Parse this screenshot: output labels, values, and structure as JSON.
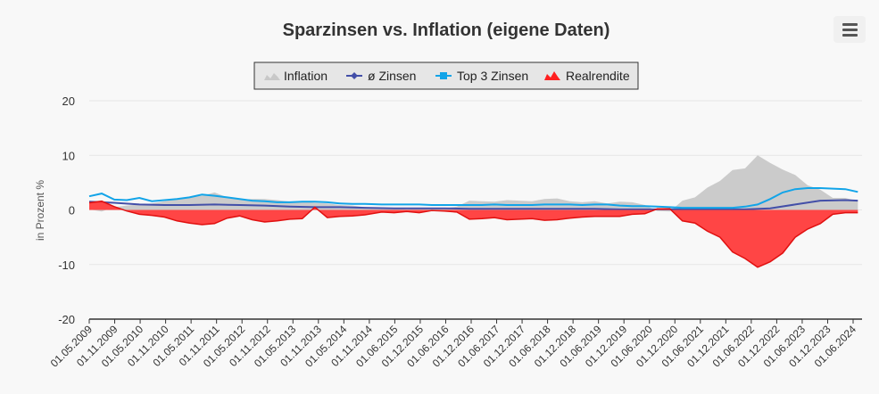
{
  "chart_data": {
    "type": "area",
    "title": "Sparzinsen vs. Inflation (eigene Daten)",
    "ylabel": "in Prozent %",
    "ylim": [
      -20,
      20
    ],
    "yticks": [
      20,
      10,
      0,
      -10,
      -20
    ],
    "grid": true,
    "legend_position": "top-center",
    "x_tick_labels": [
      "01.05.2009",
      "01.11.2009",
      "01.05.2010",
      "01.11.2010",
      "01.05.2011",
      "01.11.2011",
      "01.05.2012",
      "01.11.2012",
      "01.05.2013",
      "01.11.2013",
      "01.05.2014",
      "01.11.2014",
      "01.06.2015",
      "01.12.2015",
      "01.06.2016",
      "01.12.2016",
      "01.06.2017",
      "01.12.2017",
      "01.06.2018",
      "01.12.2018",
      "01.06.2019",
      "01.12.2019",
      "01.06.2020",
      "01.12.2020",
      "01.06.2021",
      "01.12.2021",
      "01.06.2022",
      "01.12.2022",
      "01.06.2023",
      "01.12.2023",
      "01.06.2024"
    ],
    "series": [
      {
        "name": "Inflation",
        "kind": "area",
        "color": "#c8c8c8",
        "x": [
          "2009-05",
          "2009-08",
          "2009-11",
          "2010-02",
          "2010-05",
          "2010-08",
          "2010-11",
          "2011-02",
          "2011-05",
          "2011-08",
          "2011-11",
          "2012-02",
          "2012-05",
          "2012-08",
          "2012-11",
          "2013-02",
          "2013-05",
          "2013-08",
          "2013-11",
          "2014-02",
          "2014-05",
          "2014-08",
          "2014-11",
          "2015-03",
          "2015-06",
          "2015-09",
          "2015-12",
          "2016-03",
          "2016-06",
          "2016-09",
          "2016-12",
          "2017-03",
          "2017-06",
          "2017-09",
          "2017-12",
          "2018-03",
          "2018-06",
          "2018-09",
          "2018-12",
          "2019-03",
          "2019-06",
          "2019-09",
          "2019-12",
          "2020-03",
          "2020-06",
          "2020-09",
          "2020-12",
          "2021-03",
          "2021-06",
          "2021-09",
          "2021-12",
          "2022-03",
          "2022-06",
          "2022-09",
          "2022-12",
          "2023-03",
          "2023-06",
          "2023-09",
          "2023-12",
          "2024-03",
          "2024-06",
          "2024-09"
        ],
        "values": [
          0.1,
          -0.3,
          0.5,
          0.8,
          1.0,
          1.2,
          1.6,
          2.0,
          2.4,
          2.6,
          3.2,
          2.3,
          1.9,
          2.0,
          2.0,
          1.8,
          1.5,
          1.6,
          1.3,
          1.2,
          0.9,
          0.8,
          0.5,
          0.3,
          0.4,
          0.1,
          0.3,
          0.3,
          0.3,
          0.6,
          1.7,
          1.6,
          1.5,
          1.8,
          1.7,
          1.6,
          2.0,
          2.1,
          1.6,
          1.4,
          1.6,
          1.2,
          1.5,
          1.4,
          0.9,
          -0.2,
          -0.3,
          1.7,
          2.3,
          4.1,
          5.3,
          7.3,
          7.6,
          10.0,
          8.6,
          7.4,
          6.4,
          4.5,
          3.7,
          2.2,
          2.2,
          1.6
        ]
      },
      {
        "name": "ø Zinsen",
        "kind": "line",
        "color": "#434fa8",
        "x": [
          "2009-05",
          "2009-11",
          "2010-05",
          "2010-11",
          "2011-05",
          "2011-11",
          "2012-05",
          "2012-11",
          "2013-05",
          "2013-11",
          "2014-05",
          "2014-11",
          "2015-06",
          "2015-12",
          "2016-06",
          "2016-12",
          "2017-06",
          "2017-12",
          "2018-06",
          "2018-12",
          "2019-06",
          "2019-12",
          "2020-06",
          "2020-12",
          "2021-06",
          "2021-12",
          "2022-06",
          "2022-12",
          "2023-06",
          "2023-12",
          "2024-06",
          "2024-09"
        ],
        "values": [
          1.5,
          1.3,
          1.0,
          0.9,
          0.9,
          1.0,
          0.9,
          0.8,
          0.6,
          0.5,
          0.5,
          0.4,
          0.3,
          0.3,
          0.3,
          0.2,
          0.2,
          0.2,
          0.2,
          0.2,
          0.2,
          0.1,
          0.1,
          0.1,
          0.1,
          0.1,
          0.1,
          0.3,
          1.0,
          1.7,
          1.8,
          1.7
        ]
      },
      {
        "name": "Top 3 Zinsen",
        "kind": "line",
        "color": "#12a4e8",
        "x": [
          "2009-05",
          "2009-08",
          "2009-11",
          "2010-02",
          "2010-05",
          "2010-08",
          "2010-11",
          "2011-02",
          "2011-05",
          "2011-08",
          "2011-11",
          "2012-02",
          "2012-05",
          "2012-08",
          "2012-11",
          "2013-02",
          "2013-05",
          "2013-08",
          "2013-11",
          "2014-02",
          "2014-05",
          "2014-08",
          "2014-11",
          "2015-03",
          "2015-06",
          "2015-09",
          "2015-12",
          "2016-03",
          "2016-06",
          "2016-09",
          "2016-12",
          "2017-03",
          "2017-06",
          "2017-09",
          "2017-12",
          "2018-03",
          "2018-06",
          "2018-09",
          "2018-12",
          "2019-03",
          "2019-06",
          "2019-09",
          "2019-12",
          "2020-03",
          "2020-06",
          "2020-09",
          "2020-12",
          "2021-03",
          "2021-06",
          "2021-09",
          "2021-12",
          "2022-03",
          "2022-06",
          "2022-09",
          "2022-12",
          "2023-03",
          "2023-06",
          "2023-09",
          "2023-12",
          "2024-03",
          "2024-06",
          "2024-09"
        ],
        "values": [
          2.5,
          3.0,
          1.9,
          1.8,
          2.2,
          1.6,
          1.8,
          2.0,
          2.3,
          2.8,
          2.6,
          2.3,
          2.0,
          1.7,
          1.6,
          1.4,
          1.4,
          1.5,
          1.5,
          1.4,
          1.2,
          1.1,
          1.1,
          1.0,
          1.0,
          1.0,
          1.0,
          0.9,
          0.9,
          0.9,
          0.9,
          0.9,
          1.0,
          0.9,
          0.9,
          0.9,
          1.0,
          1.0,
          1.0,
          0.9,
          1.0,
          1.0,
          0.8,
          0.7,
          0.7,
          0.6,
          0.5,
          0.4,
          0.4,
          0.4,
          0.4,
          0.4,
          0.6,
          1.0,
          2.0,
          3.2,
          3.8,
          4.0,
          4.0,
          3.9,
          3.8,
          3.3
        ]
      },
      {
        "name": "Realrendite",
        "kind": "area",
        "color": "#ff3b3b",
        "x": [
          "2009-05",
          "2009-08",
          "2009-11",
          "2010-02",
          "2010-05",
          "2010-08",
          "2010-11",
          "2011-02",
          "2011-05",
          "2011-08",
          "2011-11",
          "2012-02",
          "2012-05",
          "2012-08",
          "2012-11",
          "2013-02",
          "2013-05",
          "2013-08",
          "2013-11",
          "2014-02",
          "2014-05",
          "2014-08",
          "2014-11",
          "2015-03",
          "2015-06",
          "2015-09",
          "2015-12",
          "2016-03",
          "2016-06",
          "2016-09",
          "2016-12",
          "2017-03",
          "2017-06",
          "2017-09",
          "2017-12",
          "2018-03",
          "2018-06",
          "2018-09",
          "2018-12",
          "2019-03",
          "2019-06",
          "2019-09",
          "2019-12",
          "2020-03",
          "2020-06",
          "2020-09",
          "2020-12",
          "2021-03",
          "2021-06",
          "2021-09",
          "2021-12",
          "2022-03",
          "2022-06",
          "2022-09",
          "2022-12",
          "2023-03",
          "2023-06",
          "2023-09",
          "2023-12",
          "2024-03",
          "2024-06",
          "2024-09"
        ],
        "values": [
          1.3,
          1.6,
          0.6,
          -0.2,
          -0.8,
          -1.0,
          -1.3,
          -2.0,
          -2.4,
          -2.7,
          -2.5,
          -1.5,
          -1.1,
          -1.8,
          -2.2,
          -2.0,
          -1.7,
          -1.6,
          0.5,
          -1.4,
          -1.2,
          -1.1,
          -0.9,
          -0.4,
          -0.5,
          -0.3,
          -0.5,
          -0.1,
          -0.2,
          -0.4,
          -1.7,
          -1.6,
          -1.4,
          -1.8,
          -1.7,
          -1.6,
          -1.9,
          -1.8,
          -1.5,
          -1.3,
          -1.2,
          -1.2,
          -1.2,
          -0.8,
          -0.7,
          0.2,
          0.2,
          -2.0,
          -2.4,
          -3.9,
          -5.0,
          -7.7,
          -8.9,
          -10.5,
          -9.5,
          -7.9,
          -5.0,
          -3.5,
          -2.5,
          -0.8,
          -0.5,
          -0.5
        ]
      }
    ]
  }
}
